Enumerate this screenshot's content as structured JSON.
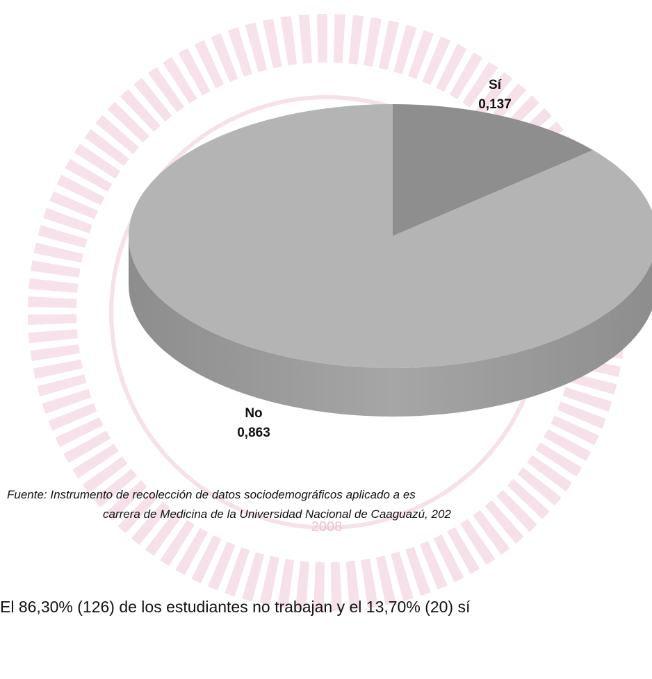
{
  "chart_data": {
    "type": "pie",
    "categories": [
      "Sí",
      "No"
    ],
    "values": [
      0.137,
      0.863
    ],
    "value_labels": [
      "0,137",
      "0,863"
    ],
    "colors": [
      "#8e8e8e",
      "#b4b4b4"
    ]
  },
  "caption": [
    "Fuente: Instrumento de recolección de datos sociodemográficos aplicado a es",
    "carrera de Medicina de la Universidad Nacional de Caaguazú, 202"
  ],
  "body": "El 86,30% (126) de los estudiantes no trabajan y el 13,70% (20) sí",
  "watermark": "2008"
}
